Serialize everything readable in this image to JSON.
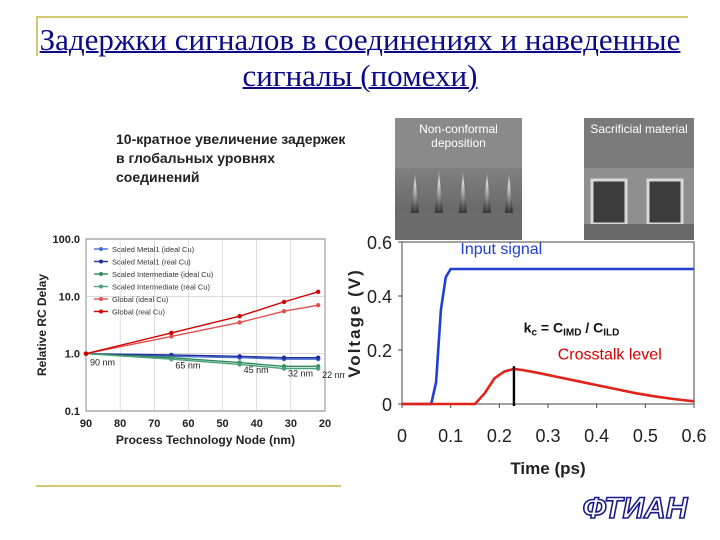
{
  "title": "Задержки сигналов в соединениях и наведенные сигналы (помехи)",
  "subtitle": "10-кратное увеличение задержек в глобальных уровнях соединений",
  "images": {
    "left_label": "Non-conformal deposition",
    "right_label": "Sacrificial material"
  },
  "logo": "ФТИАН",
  "colors": {
    "title": "#0a0a8a",
    "signal": "#1f3fd6",
    "crosstalk": "#e2231a",
    "scale_green": "#2e8b57"
  },
  "chart_data": [
    {
      "type": "line",
      "ylabel": "Relative RC Delay",
      "xlabel": "Process Technology Node (nm)",
      "y_scale": "log",
      "ylim": [
        0.1,
        100.0
      ],
      "xlim": [
        90,
        20
      ],
      "x_ticks": [
        "90",
        "80",
        "70",
        "60",
        "50",
        "40",
        "30",
        "20"
      ],
      "y_ticks": [
        "100.0",
        "10.0",
        "1.0",
        "0.1"
      ],
      "node_annotations": [
        "90 nm",
        "65 nm",
        "45 nm",
        "32 nm",
        "22 nm"
      ],
      "x": [
        90,
        65,
        45,
        32,
        22
      ],
      "series": [
        {
          "name": "Scaled Metal1 (ideal Cu)",
          "color": "#4a6fd0",
          "values": [
            1.0,
            0.9,
            0.85,
            0.8,
            0.8
          ]
        },
        {
          "name": "Scaled Metal1 (real Cu)",
          "color": "#1c2f9a",
          "values": [
            1.0,
            0.95,
            0.9,
            0.85,
            0.85
          ]
        },
        {
          "name": "Scaled Intermediate (ideal Cu)",
          "color": "#2e8b57",
          "values": [
            1.0,
            0.85,
            0.7,
            0.6,
            0.6
          ]
        },
        {
          "name": "Scaled Intermediate (real Cu)",
          "color": "#4aa07a",
          "values": [
            1.0,
            0.8,
            0.65,
            0.55,
            0.55
          ]
        },
        {
          "name": "Global (ideal Cu)",
          "color": "#e05050",
          "values": [
            1.0,
            2.0,
            3.5,
            5.5,
            7.0
          ]
        },
        {
          "name": "Global (real Cu)",
          "color": "#d40000",
          "values": [
            1.0,
            2.3,
            4.5,
            8.0,
            12.0
          ]
        }
      ]
    },
    {
      "type": "line",
      "xlabel": "Time (ps)",
      "ylabel": "Voltage (V)",
      "xlim": [
        0,
        0.6
      ],
      "ylim": [
        0,
        0.6
      ],
      "x_ticks": [
        "0",
        "0.1",
        "0.2",
        "0.3",
        "0.4",
        "0.5",
        "0.6"
      ],
      "y_ticks": [
        "0",
        "0.2",
        "0.4",
        "0.6"
      ],
      "annotations": {
        "input_signal": "Input signal",
        "crosstalk": "Crosstalk level",
        "formula_k": "k",
        "formula_k_sub": "c",
        "formula_eq": " = C",
        "formula_c1_sub": "IMD",
        "formula_div": " / C",
        "formula_c2_sub": "ILD"
      },
      "series": [
        {
          "name": "Input signal",
          "x": [
            0,
            0.06,
            0.07,
            0.08,
            0.09,
            0.1,
            0.6
          ],
          "y": [
            0,
            0,
            0.08,
            0.35,
            0.47,
            0.5,
            0.5
          ]
        },
        {
          "name": "Crosstalk level",
          "x": [
            0,
            0.15,
            0.17,
            0.19,
            0.21,
            0.23,
            0.25,
            0.28,
            0.32,
            0.36,
            0.4,
            0.44,
            0.48,
            0.52,
            0.56,
            0.6
          ],
          "y": [
            0,
            0,
            0.04,
            0.095,
            0.12,
            0.13,
            0.125,
            0.115,
            0.1,
            0.085,
            0.07,
            0.055,
            0.04,
            0.028,
            0.018,
            0.01
          ]
        }
      ]
    }
  ]
}
